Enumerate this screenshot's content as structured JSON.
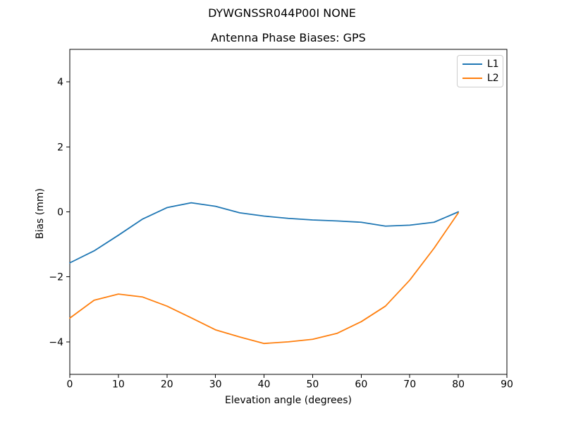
{
  "figure": {
    "background": "#ffffff",
    "text_color": "#000000"
  },
  "chart_data": {
    "type": "line",
    "suptitle": "DYWGNSSR044P00I NONE",
    "title": "Antenna Phase Biases: GPS",
    "xlabel": "Elevation angle (degrees)",
    "ylabel": "Bias (mm)",
    "xlim": [
      0,
      90
    ],
    "ylim": [
      -5,
      5
    ],
    "x_ticks": [
      0,
      10,
      20,
      30,
      40,
      50,
      60,
      70,
      80,
      90
    ],
    "y_ticks": [
      -4,
      -2,
      0,
      2,
      4
    ],
    "grid": false,
    "legend_position": "upper right",
    "x": [
      0,
      5,
      10,
      15,
      20,
      25,
      30,
      35,
      40,
      45,
      50,
      55,
      60,
      65,
      70,
      75,
      80
    ],
    "series": [
      {
        "name": "L1",
        "color": "#1f77b4",
        "values": [
          -1.57,
          -1.2,
          -0.72,
          -0.22,
          0.13,
          0.28,
          0.17,
          -0.03,
          -0.13,
          -0.2,
          -0.25,
          -0.28,
          -0.32,
          -0.44,
          -0.41,
          -0.32,
          0.0
        ]
      },
      {
        "name": "L2",
        "color": "#ff7f0e",
        "values": [
          -3.27,
          -2.72,
          -2.53,
          -2.62,
          -2.9,
          -3.26,
          -3.63,
          -3.85,
          -4.05,
          -4.0,
          -3.92,
          -3.74,
          -3.38,
          -2.9,
          -2.1,
          -1.12,
          -0.03
        ]
      }
    ]
  }
}
